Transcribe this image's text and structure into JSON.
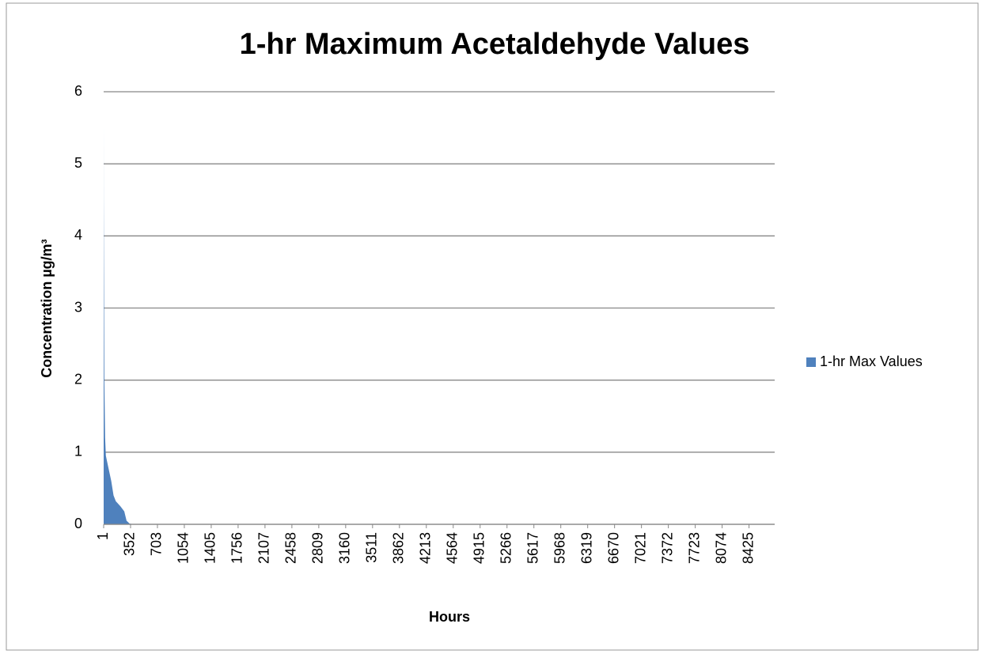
{
  "chart_data": {
    "type": "area",
    "title": "1-hr Maximum Acetaldehyde Values",
    "x_label": "Hours",
    "y_label": "Concentration µg/m³",
    "series": [
      {
        "name": "1-hr Max Values",
        "color": "#4f81bd",
        "x": [
          1,
          2,
          5,
          10,
          20,
          30,
          60,
          100,
          130,
          160,
          220,
          270,
          300,
          340,
          400,
          8760
        ],
        "values": [
          5.6,
          4.5,
          3.5,
          2.0,
          1.2,
          0.95,
          0.8,
          0.6,
          0.4,
          0.32,
          0.25,
          0.18,
          0.05,
          0.01,
          0,
          0
        ]
      }
    ],
    "xlim": [
      1,
      8760
    ],
    "xticks": [
      1,
      352,
      703,
      1054,
      1405,
      1756,
      2107,
      2458,
      2809,
      3160,
      3511,
      3862,
      4213,
      4564,
      4915,
      5266,
      5617,
      5968,
      6319,
      6670,
      7021,
      7372,
      7723,
      8074,
      8425
    ],
    "ylim": [
      0,
      6
    ],
    "yticks": [
      0,
      1,
      2,
      3,
      4,
      5,
      6
    ],
    "grid": true,
    "legend": "right"
  }
}
